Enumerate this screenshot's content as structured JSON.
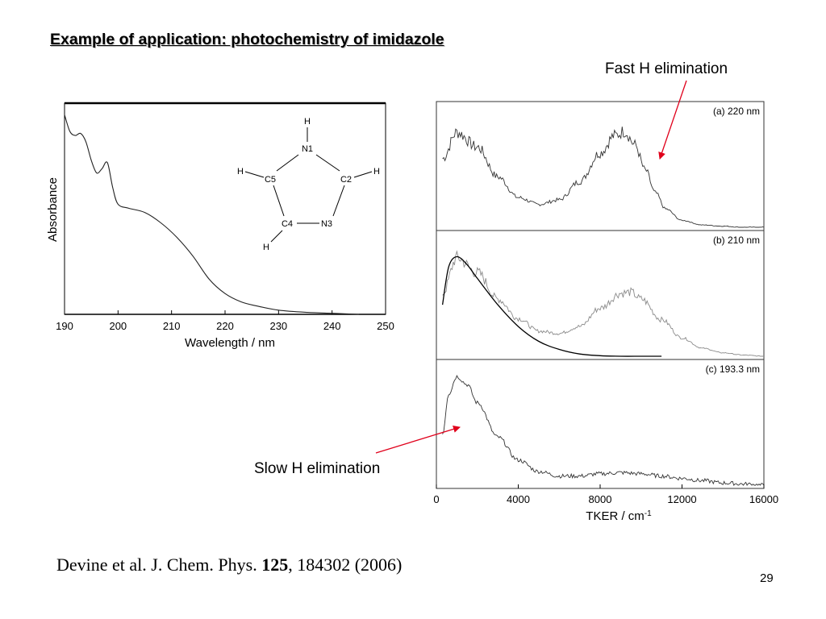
{
  "slide": {
    "title": "Example of application: photochemistry of imidazole",
    "annotation_fast": "Fast H elimination",
    "annotation_slow": "Slow H elimination",
    "citation_authors": "Devine et al. J. Chem. Phys. ",
    "citation_volume": "125",
    "citation_rest": ", 184302 (2006)",
    "page_number": "29",
    "arrow_color": "#e0001b"
  },
  "molecule": {
    "atoms": [
      "N1",
      "C2",
      "N3",
      "C4",
      "C5"
    ],
    "hydrogen": "H"
  },
  "chart_data": [
    {
      "type": "line",
      "title": "",
      "xlabel": "Wavelength / nm",
      "ylabel": "Absorbance",
      "xlim": [
        190,
        250
      ],
      "ylim": [
        0,
        1
      ],
      "xticks": [
        190,
        200,
        210,
        220,
        230,
        240,
        250
      ],
      "x": [
        190,
        191,
        192,
        193,
        194,
        195,
        196,
        197,
        198,
        199,
        200,
        202,
        205,
        208,
        211,
        214,
        217,
        220,
        223,
        226,
        230,
        235,
        240,
        245
      ],
      "y": [
        0.96,
        0.88,
        0.86,
        0.87,
        0.83,
        0.74,
        0.68,
        0.7,
        0.73,
        0.61,
        0.53,
        0.51,
        0.49,
        0.44,
        0.37,
        0.28,
        0.17,
        0.1,
        0.06,
        0.04,
        0.02,
        0.01,
        0.005,
        0.0
      ],
      "series_color": "#222222"
    },
    {
      "type": "line",
      "title": "",
      "xlabel": "TKER / cm",
      "xlabel_superscript": "-1",
      "ylabel": "",
      "xlim": [
        0,
        16000
      ],
      "xticks": [
        0,
        4000,
        8000,
        12000,
        16000
      ],
      "panels": [
        {
          "label": "(a) 220 nm",
          "x": [
            300,
            1000,
            2000,
            3000,
            4000,
            5000,
            6000,
            7000,
            8000,
            8700,
            9200,
            9700,
            10200,
            10700,
            11200,
            12000,
            13000,
            14000,
            15000,
            16000
          ],
          "y": [
            0.6,
            0.83,
            0.7,
            0.44,
            0.26,
            0.2,
            0.24,
            0.4,
            0.65,
            0.8,
            0.84,
            0.72,
            0.5,
            0.3,
            0.16,
            0.06,
            0.02,
            0.01,
            0.0,
            0.0
          ]
        },
        {
          "label": "(b) 210 nm",
          "x": [
            300,
            1000,
            2000,
            3000,
            4000,
            5000,
            6000,
            7000,
            8000,
            9000,
            9500,
            10000,
            11000,
            12000,
            13000,
            14000,
            15000,
            16000
          ],
          "y": [
            0.55,
            0.86,
            0.73,
            0.5,
            0.33,
            0.22,
            0.2,
            0.26,
            0.42,
            0.55,
            0.56,
            0.5,
            0.32,
            0.16,
            0.07,
            0.03,
            0.01,
            0.0
          ],
          "fit": {
            "x": [
              300,
              600,
              1000,
              1500,
              2000,
              3000,
              4000,
              5000,
              6000,
              7000,
              8000,
              9000,
              10000,
              11000
            ],
            "y": [
              0.45,
              0.78,
              0.87,
              0.8,
              0.68,
              0.45,
              0.26,
              0.13,
              0.06,
              0.02,
              0.005,
              0.0,
              0.0,
              0.0
            ]
          }
        },
        {
          "label": "(c) 193.3 nm",
          "x": [
            300,
            600,
            1000,
            1500,
            2000,
            3000,
            4000,
            5000,
            6000,
            7000,
            8000,
            9000,
            10000,
            11000,
            12000,
            13000,
            14000,
            15000,
            16000
          ],
          "y": [
            0.45,
            0.8,
            0.95,
            0.88,
            0.72,
            0.42,
            0.22,
            0.12,
            0.08,
            0.08,
            0.1,
            0.11,
            0.1,
            0.08,
            0.06,
            0.04,
            0.02,
            0.01,
            0.0
          ]
        }
      ],
      "series_color": "#333333",
      "fit_color": "#000000"
    }
  ]
}
